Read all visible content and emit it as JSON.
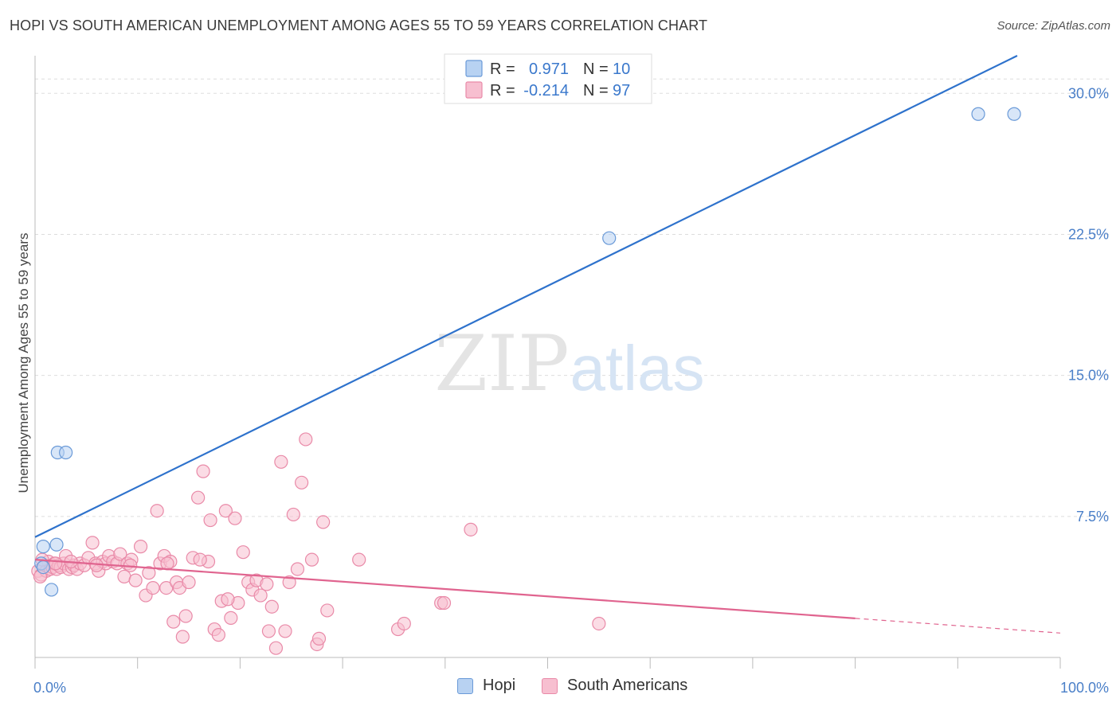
{
  "header": {
    "title": "HOPI VS SOUTH AMERICAN UNEMPLOYMENT AMONG AGES 55 TO 59 YEARS CORRELATION CHART",
    "source": "Source: ZipAtlas.com"
  },
  "watermark": {
    "zip": "ZIP",
    "atlas": "atlas"
  },
  "legend_top": {
    "rows": [
      {
        "r_label": "R =",
        "r_value": "0.971",
        "n_label": "N =",
        "n_value": "10"
      },
      {
        "r_label": "R =",
        "r_value": "-0.214",
        "n_label": "N =",
        "n_value": "97"
      }
    ]
  },
  "legend_bottom": {
    "hopi": "Hopi",
    "south": "South Americans"
  },
  "colors": {
    "hopi_fill": "#b8d2f2",
    "hopi_stroke": "#6a9ad8",
    "hopi_line": "#2e72cc",
    "south_fill": "#f7bfd0",
    "south_stroke": "#e98aa8",
    "south_line": "#e0648f",
    "grid": "#dddddd",
    "tick_text": "#4a7fc8"
  },
  "chart_data": {
    "type": "scatter",
    "title": "HOPI VS SOUTH AMERICAN UNEMPLOYMENT AMONG AGES 55 TO 59 YEARS CORRELATION CHART",
    "xlabel": "",
    "ylabel": "Unemployment Among Ages 55 to 59 years",
    "xlim": [
      0,
      100
    ],
    "ylim": [
      0,
      32
    ],
    "x_tick_labels": [
      {
        "value": 0,
        "label": "0.0%"
      },
      {
        "value": 100,
        "label": "100.0%"
      }
    ],
    "x_minor_ticks": [
      0,
      10,
      20,
      30,
      40,
      50,
      60,
      70,
      80,
      90,
      100
    ],
    "y_ticks": [
      {
        "value": 7.5,
        "label": "7.5%"
      },
      {
        "value": 15.0,
        "label": "15.0%"
      },
      {
        "value": 22.5,
        "label": "22.5%"
      },
      {
        "value": 30.0,
        "label": "30.0%"
      }
    ],
    "grid": true,
    "series": [
      {
        "name": "Hopi",
        "r": 0.971,
        "n": 10,
        "points": [
          [
            0.6,
            5.0
          ],
          [
            0.8,
            4.8
          ],
          [
            0.8,
            5.9
          ],
          [
            1.6,
            3.6
          ],
          [
            2.1,
            6.0
          ],
          [
            2.2,
            10.9
          ],
          [
            3.0,
            10.9
          ],
          [
            56.0,
            22.3
          ],
          [
            92.0,
            28.9
          ],
          [
            95.5,
            28.9
          ]
        ],
        "trend": {
          "x1": 0,
          "y1": 6.4,
          "x2": 95.8,
          "y2": 32.0,
          "dashed_from": null
        }
      },
      {
        "name": "South Americans",
        "r": -0.214,
        "n": 97,
        "points": [
          [
            0.3,
            4.6
          ],
          [
            0.6,
            4.4
          ],
          [
            0.9,
            4.9
          ],
          [
            1.1,
            4.6
          ],
          [
            1.3,
            5.1
          ],
          [
            1.5,
            4.7
          ],
          [
            1.7,
            4.8
          ],
          [
            1.9,
            5.0
          ],
          [
            2.1,
            4.7
          ],
          [
            2.3,
            4.9
          ],
          [
            2.5,
            4.8
          ],
          [
            2.8,
            5.0
          ],
          [
            3.0,
            5.4
          ],
          [
            3.3,
            4.7
          ],
          [
            3.6,
            4.8
          ],
          [
            3.8,
            4.9
          ],
          [
            4.1,
            4.7
          ],
          [
            4.4,
            5.0
          ],
          [
            4.8,
            4.9
          ],
          [
            5.2,
            5.3
          ],
          [
            5.6,
            6.1
          ],
          [
            5.9,
            5.0
          ],
          [
            6.2,
            4.6
          ],
          [
            6.6,
            5.1
          ],
          [
            6.9,
            5.0
          ],
          [
            7.2,
            5.4
          ],
          [
            7.6,
            5.1
          ],
          [
            8.0,
            5.0
          ],
          [
            8.3,
            5.5
          ],
          [
            8.7,
            4.3
          ],
          [
            9.0,
            5.0
          ],
          [
            9.4,
            5.2
          ],
          [
            9.8,
            4.1
          ],
          [
            10.3,
            5.9
          ],
          [
            10.8,
            3.3
          ],
          [
            11.1,
            4.5
          ],
          [
            11.5,
            3.7
          ],
          [
            11.9,
            7.8
          ],
          [
            12.2,
            5.0
          ],
          [
            12.6,
            5.4
          ],
          [
            12.8,
            3.7
          ],
          [
            13.2,
            5.1
          ],
          [
            13.5,
            1.9
          ],
          [
            13.8,
            4.0
          ],
          [
            14.1,
            3.7
          ],
          [
            14.4,
            1.1
          ],
          [
            14.7,
            2.2
          ],
          [
            15.0,
            4.0
          ],
          [
            15.4,
            5.3
          ],
          [
            15.9,
            8.5
          ],
          [
            16.4,
            9.9
          ],
          [
            16.9,
            5.1
          ],
          [
            17.1,
            7.3
          ],
          [
            17.5,
            1.5
          ],
          [
            17.9,
            1.2
          ],
          [
            18.2,
            3.0
          ],
          [
            18.6,
            7.8
          ],
          [
            19.1,
            2.1
          ],
          [
            19.5,
            7.4
          ],
          [
            19.8,
            2.9
          ],
          [
            20.3,
            5.6
          ],
          [
            20.8,
            4.0
          ],
          [
            21.2,
            3.6
          ],
          [
            21.6,
            4.1
          ],
          [
            22.0,
            3.3
          ],
          [
            22.8,
            1.4
          ],
          [
            23.1,
            2.7
          ],
          [
            23.5,
            0.5
          ],
          [
            24.0,
            10.4
          ],
          [
            24.4,
            1.4
          ],
          [
            24.8,
            4.0
          ],
          [
            25.2,
            7.6
          ],
          [
            25.6,
            4.7
          ],
          [
            26.0,
            9.3
          ],
          [
            26.4,
            11.6
          ],
          [
            27.0,
            5.2
          ],
          [
            27.5,
            0.7
          ],
          [
            27.7,
            1.0
          ],
          [
            28.1,
            7.2
          ],
          [
            28.5,
            2.5
          ],
          [
            31.6,
            5.2
          ],
          [
            35.4,
            1.5
          ],
          [
            36.0,
            1.8
          ],
          [
            39.6,
            2.9
          ],
          [
            39.9,
            2.9
          ],
          [
            42.5,
            6.8
          ],
          [
            55.0,
            1.8
          ],
          [
            0.5,
            4.3
          ],
          [
            0.7,
            5.2
          ],
          [
            2.0,
            5.0
          ],
          [
            3.5,
            5.1
          ],
          [
            6.0,
            4.9
          ],
          [
            9.3,
            4.9
          ],
          [
            12.9,
            5.0
          ],
          [
            16.1,
            5.2
          ],
          [
            18.8,
            3.1
          ],
          [
            22.6,
            3.9
          ]
        ],
        "trend": {
          "x1": 0,
          "y1": 5.2,
          "x2": 100,
          "y2": 1.3,
          "dashed_from": 80
        }
      }
    ]
  }
}
